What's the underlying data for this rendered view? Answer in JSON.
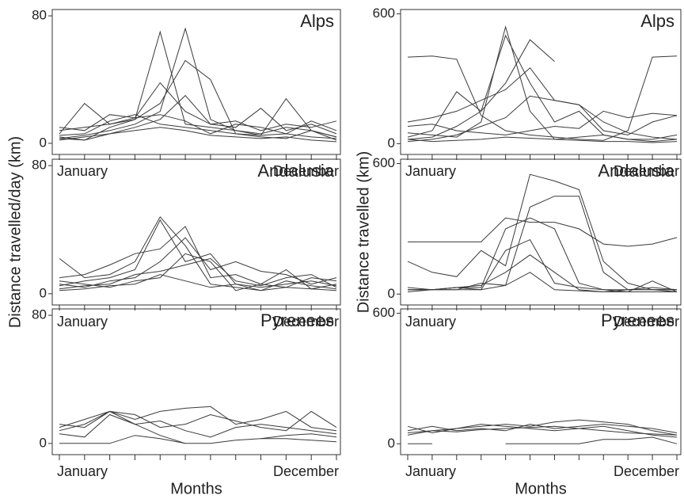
{
  "chart_data": [
    {
      "type": "line",
      "title": "Alps",
      "color": "#3a3a3a",
      "categories": [
        "January",
        null,
        null,
        null,
        null,
        null,
        null,
        null,
        null,
        null,
        null,
        "December"
      ],
      "ylim": [
        -7,
        84
      ],
      "yticks": [
        0,
        80
      ],
      "series": [
        {
          "values": [
            4,
            2,
            10,
            15,
            70,
            12,
            10,
            8,
            5,
            6,
            4,
            3
          ]
        },
        {
          "values": [
            3,
            5,
            8,
            12,
            20,
            72,
            15,
            8,
            6,
            10,
            8,
            4
          ]
        },
        {
          "values": [
            6,
            25,
            12,
            15,
            25,
            52,
            40,
            6,
            5,
            28,
            8,
            4
          ]
        },
        {
          "values": [
            10,
            8,
            18,
            16,
            38,
            20,
            12,
            10,
            22,
            8,
            12,
            6
          ]
        },
        {
          "values": [
            2,
            4,
            6,
            10,
            15,
            30,
            12,
            14,
            8,
            12,
            10,
            14
          ]
        },
        {
          "values": [
            5,
            6,
            14,
            18,
            12,
            10,
            8,
            6,
            4,
            3,
            8,
            2
          ]
        },
        {
          "values": [
            8,
            10,
            12,
            16,
            18,
            14,
            6,
            12,
            10,
            6,
            14,
            8
          ]
        },
        {
          "values": [
            3,
            2,
            6,
            8,
            10,
            8,
            5,
            4,
            3,
            4,
            2,
            1
          ]
        }
      ]
    },
    {
      "type": "line",
      "title": "Alps",
      "color": "#3a3a3a",
      "categories": [
        "January",
        null,
        null,
        null,
        null,
        null,
        null,
        null,
        null,
        null,
        null,
        "December"
      ],
      "ylim": [
        -50,
        620
      ],
      "yticks": [
        0,
        600
      ],
      "series": [
        {
          "values": [
            400,
            405,
            390,
            130,
            60,
            40,
            30,
            20,
            15,
            60,
            400,
            405
          ]
        },
        {
          "values": [
            30,
            60,
            240,
            150,
            500,
            280,
            100,
            150,
            40,
            20,
            20,
            40
          ]
        },
        {
          "values": [
            20,
            30,
            80,
            150,
            280,
            480,
            380,
            null,
            null,
            null,
            null,
            null
          ]
        },
        {
          "values": [
            100,
            120,
            150,
            200,
            250,
            350,
            200,
            180,
            60,
            40,
            100,
            130
          ]
        },
        {
          "values": [
            50,
            40,
            30,
            100,
            540,
            150,
            20,
            30,
            40,
            20,
            10,
            20
          ]
        },
        {
          "values": [
            10,
            20,
            40,
            80,
            120,
            220,
            200,
            180,
            100,
            50,
            30,
            20
          ]
        },
        {
          "values": [
            80,
            90,
            60,
            50,
            40,
            60,
            80,
            70,
            150,
            120,
            140,
            130
          ]
        },
        {
          "values": [
            20,
            10,
            15,
            20,
            30,
            25,
            20,
            15,
            10,
            10,
            5,
            10
          ]
        }
      ]
    },
    {
      "type": "line",
      "title": "Andalusia",
      "ylabel": "Distance travelled/day (km)",
      "color": "#3a3a3a",
      "categories": [
        "January",
        null,
        null,
        null,
        null,
        null,
        null,
        null,
        null,
        null,
        null,
        "December"
      ],
      "ylim": [
        -7,
        84
      ],
      "yticks": [
        0,
        80
      ],
      "series": [
        {
          "values": [
            22,
            10,
            12,
            20,
            48,
            30,
            6,
            4,
            2,
            8,
            5,
            3
          ]
        },
        {
          "values": [
            5,
            8,
            10,
            15,
            46,
            20,
            25,
            6,
            4,
            6,
            8,
            5
          ]
        },
        {
          "values": [
            10,
            12,
            18,
            25,
            28,
            42,
            10,
            12,
            6,
            4,
            10,
            8
          ]
        },
        {
          "values": [
            6,
            4,
            8,
            10,
            20,
            35,
            15,
            20,
            14,
            12,
            6,
            10
          ]
        },
        {
          "values": [
            3,
            5,
            6,
            12,
            14,
            18,
            22,
            8,
            5,
            10,
            12,
            4
          ]
        },
        {
          "values": [
            8,
            6,
            4,
            8,
            10,
            25,
            20,
            2,
            6,
            15,
            3,
            6
          ]
        },
        {
          "values": [
            2,
            3,
            5,
            6,
            12,
            8,
            4,
            6,
            2,
            4,
            3,
            2
          ]
        }
      ]
    },
    {
      "type": "line",
      "title": "Andalusia",
      "ylabel": "Distance travelled (km)",
      "color": "#3a3a3a",
      "categories": [
        "January",
        null,
        null,
        null,
        null,
        null,
        null,
        null,
        null,
        null,
        null,
        "December"
      ],
      "ylim": [
        -50,
        620
      ],
      "yticks": [
        0,
        600
      ],
      "series": [
        {
          "values": [
            240,
            240,
            240,
            240,
            350,
            330,
            330,
            300,
            230,
            220,
            230,
            260
          ]
        },
        {
          "values": [
            150,
            100,
            80,
            200,
            130,
            550,
            520,
            480,
            150,
            50,
            20,
            10
          ]
        },
        {
          "values": [
            20,
            20,
            20,
            20,
            40,
            400,
            450,
            450,
            100,
            20,
            20,
            20
          ]
        },
        {
          "values": [
            20,
            20,
            30,
            30,
            300,
            350,
            300,
            50,
            20,
            20,
            20,
            20
          ]
        },
        {
          "values": [
            10,
            20,
            30,
            20,
            200,
            250,
            50,
            30,
            20,
            10,
            60,
            10
          ]
        },
        {
          "values": [
            30,
            20,
            30,
            40,
            100,
            180,
            100,
            20,
            10,
            10,
            10,
            10
          ]
        },
        {
          "values": [
            20,
            20,
            20,
            50,
            40,
            100,
            20,
            15,
            10,
            20,
            30,
            20
          ]
        }
      ]
    },
    {
      "type": "line",
      "title": "Pyrenees",
      "xlabel": "Months",
      "color": "#3a3a3a",
      "categories": [
        "January",
        null,
        null,
        null,
        null,
        null,
        null,
        null,
        null,
        null,
        null,
        "December"
      ],
      "ylim": [
        -7,
        84
      ],
      "yticks": [
        0,
        80
      ],
      "series": [
        {
          "values": [
            12,
            10,
            20,
            15,
            20,
            22,
            23,
            12,
            15,
            20,
            10,
            8
          ]
        },
        {
          "values": [
            8,
            12,
            20,
            18,
            10,
            12,
            18,
            14,
            10,
            8,
            20,
            10
          ]
        },
        {
          "values": [
            10,
            15,
            20,
            12,
            14,
            8,
            4,
            10,
            12,
            10,
            8,
            6
          ]
        },
        {
          "values": [
            6,
            4,
            18,
            12,
            5,
            0,
            null,
            null,
            3,
            5,
            6,
            4
          ]
        },
        {
          "values": [
            0,
            0,
            0,
            5,
            3,
            0,
            0,
            2,
            3,
            3,
            2,
            1
          ]
        }
      ]
    },
    {
      "type": "line",
      "title": "Pyrenees",
      "xlabel": "Months",
      "color": "#3a3a3a",
      "categories": [
        "January",
        null,
        null,
        null,
        null,
        null,
        null,
        null,
        null,
        null,
        null,
        "December"
      ],
      "ylim": [
        -50,
        620
      ],
      "yticks": [
        0,
        600
      ],
      "series": [
        {
          "values": [
            40,
            60,
            70,
            80,
            90,
            80,
            100,
            110,
            100,
            90,
            60,
            40
          ]
        },
        {
          "values": [
            60,
            80,
            60,
            70,
            60,
            90,
            70,
            80,
            90,
            80,
            70,
            50
          ]
        },
        {
          "values": [
            80,
            50,
            70,
            90,
            80,
            70,
            60,
            70,
            80,
            60,
            40,
            30
          ]
        },
        {
          "values": [
            50,
            60,
            55,
            65,
            70,
            75,
            80,
            70,
            60,
            50,
            45,
            40
          ]
        },
        {
          "values": [
            0,
            0,
            null,
            null,
            0,
            0,
            0,
            0,
            20,
            20,
            30,
            0
          ]
        }
      ]
    }
  ]
}
